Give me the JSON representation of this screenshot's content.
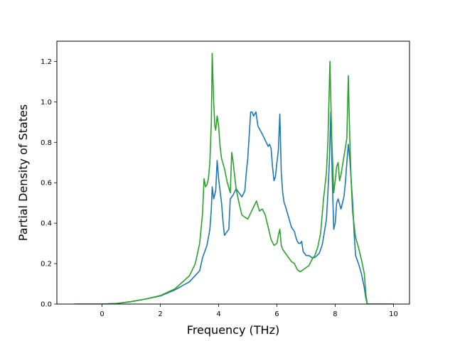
{
  "chart_data": {
    "type": "line",
    "title": "",
    "xlabel": "Frequency (THz)",
    "ylabel": "Partial Density of States",
    "xlim": [
      -1.55,
      10.55
    ],
    "ylim": [
      0.0,
      1.3
    ],
    "xticks": [
      0,
      2,
      4,
      6,
      8,
      10
    ],
    "yticks": [
      0.0,
      0.2,
      0.4,
      0.6,
      0.8,
      1.0,
      1.2
    ],
    "xtick_labels": [
      "0",
      "2",
      "4",
      "6",
      "8",
      "10"
    ],
    "ytick_labels": [
      "0.0",
      "0.2",
      "0.4",
      "0.6",
      "0.8",
      "1.0",
      "1.2"
    ],
    "grid": false,
    "series": [
      {
        "color": "#1f77b4",
        "points": [
          [
            -0.95,
            0.0
          ],
          [
            0.0,
            0.0
          ],
          [
            0.5,
            0.003
          ],
          [
            1.0,
            0.012
          ],
          [
            1.5,
            0.025
          ],
          [
            2.0,
            0.04
          ],
          [
            2.5,
            0.07
          ],
          [
            3.0,
            0.11
          ],
          [
            3.35,
            0.165
          ],
          [
            3.45,
            0.23
          ],
          [
            3.6,
            0.29
          ],
          [
            3.7,
            0.37
          ],
          [
            3.75,
            0.47
          ],
          [
            3.78,
            0.58
          ],
          [
            3.83,
            0.52
          ],
          [
            3.9,
            0.56
          ],
          [
            3.95,
            0.71
          ],
          [
            4.0,
            0.62
          ],
          [
            4.1,
            0.5
          ],
          [
            4.15,
            0.41
          ],
          [
            4.2,
            0.34
          ],
          [
            4.3,
            0.36
          ],
          [
            4.35,
            0.37
          ],
          [
            4.4,
            0.52
          ],
          [
            4.5,
            0.54
          ],
          [
            4.6,
            0.57
          ],
          [
            4.7,
            0.55
          ],
          [
            4.8,
            0.53
          ],
          [
            4.9,
            0.56
          ],
          [
            4.95,
            0.65
          ],
          [
            5.0,
            0.72
          ],
          [
            5.1,
            0.95
          ],
          [
            5.15,
            0.95
          ],
          [
            5.2,
            0.93
          ],
          [
            5.28,
            0.95
          ],
          [
            5.35,
            0.88
          ],
          [
            5.5,
            0.84
          ],
          [
            5.6,
            0.81
          ],
          [
            5.7,
            0.78
          ],
          [
            5.75,
            0.79
          ],
          [
            5.8,
            0.77
          ],
          [
            5.85,
            0.68
          ],
          [
            5.9,
            0.61
          ],
          [
            5.95,
            0.63
          ],
          [
            6.0,
            0.7
          ],
          [
            6.05,
            0.76
          ],
          [
            6.1,
            0.94
          ],
          [
            6.15,
            0.65
          ],
          [
            6.2,
            0.55
          ],
          [
            6.25,
            0.5
          ],
          [
            6.3,
            0.48
          ],
          [
            6.4,
            0.43
          ],
          [
            6.5,
            0.38
          ],
          [
            6.6,
            0.36
          ],
          [
            6.65,
            0.33
          ],
          [
            6.7,
            0.31
          ],
          [
            6.75,
            0.3
          ],
          [
            6.8,
            0.3
          ],
          [
            6.85,
            0.31
          ],
          [
            6.9,
            0.26
          ],
          [
            7.0,
            0.24
          ],
          [
            7.1,
            0.24
          ],
          [
            7.2,
            0.23
          ],
          [
            7.3,
            0.23
          ],
          [
            7.45,
            0.25
          ],
          [
            7.55,
            0.29
          ],
          [
            7.6,
            0.33
          ],
          [
            7.7,
            0.42
          ],
          [
            7.75,
            0.55
          ],
          [
            7.8,
            0.7
          ],
          [
            7.85,
            0.95
          ],
          [
            7.9,
            0.62
          ],
          [
            7.95,
            0.37
          ],
          [
            8.0,
            0.4
          ],
          [
            8.05,
            0.5
          ],
          [
            8.1,
            0.52
          ],
          [
            8.2,
            0.47
          ],
          [
            8.3,
            0.53
          ],
          [
            8.35,
            0.6
          ],
          [
            8.4,
            0.7
          ],
          [
            8.45,
            0.79
          ],
          [
            8.5,
            0.72
          ],
          [
            8.6,
            0.5
          ],
          [
            8.65,
            0.35
          ],
          [
            8.7,
            0.24
          ],
          [
            8.8,
            0.2
          ],
          [
            8.9,
            0.15
          ],
          [
            9.0,
            0.08
          ],
          [
            9.05,
            0.03
          ],
          [
            9.1,
            0.0
          ],
          [
            10.0,
            0.0
          ]
        ]
      },
      {
        "color": "#2ca02c",
        "points": [
          [
            -0.95,
            0.0
          ],
          [
            0.0,
            0.0
          ],
          [
            0.5,
            0.003
          ],
          [
            1.0,
            0.012
          ],
          [
            1.5,
            0.025
          ],
          [
            2.0,
            0.042
          ],
          [
            2.5,
            0.075
          ],
          [
            3.0,
            0.14
          ],
          [
            3.2,
            0.2
          ],
          [
            3.35,
            0.3
          ],
          [
            3.45,
            0.45
          ],
          [
            3.5,
            0.62
          ],
          [
            3.55,
            0.58
          ],
          [
            3.6,
            0.59
          ],
          [
            3.65,
            0.62
          ],
          [
            3.7,
            0.7
          ],
          [
            3.75,
            0.9
          ],
          [
            3.78,
            1.24
          ],
          [
            3.83,
            1.0
          ],
          [
            3.87,
            0.88
          ],
          [
            3.9,
            0.86
          ],
          [
            3.95,
            0.93
          ],
          [
            4.0,
            0.88
          ],
          [
            4.05,
            0.78
          ],
          [
            4.1,
            0.72
          ],
          [
            4.2,
            0.67
          ],
          [
            4.3,
            0.6
          ],
          [
            4.4,
            0.55
          ],
          [
            4.45,
            0.75
          ],
          [
            4.5,
            0.7
          ],
          [
            4.6,
            0.57
          ],
          [
            4.7,
            0.5
          ],
          [
            4.8,
            0.44
          ],
          [
            4.9,
            0.43
          ],
          [
            5.0,
            0.42
          ],
          [
            5.1,
            0.45
          ],
          [
            5.2,
            0.48
          ],
          [
            5.3,
            0.51
          ],
          [
            5.4,
            0.46
          ],
          [
            5.5,
            0.47
          ],
          [
            5.6,
            0.44
          ],
          [
            5.7,
            0.38
          ],
          [
            5.8,
            0.32
          ],
          [
            5.9,
            0.29
          ],
          [
            6.0,
            0.3
          ],
          [
            6.05,
            0.34
          ],
          [
            6.1,
            0.37
          ],
          [
            6.15,
            0.29
          ],
          [
            6.2,
            0.27
          ],
          [
            6.3,
            0.25
          ],
          [
            6.4,
            0.23
          ],
          [
            6.5,
            0.21
          ],
          [
            6.6,
            0.2
          ],
          [
            6.7,
            0.17
          ],
          [
            6.8,
            0.16
          ],
          [
            6.9,
            0.17
          ],
          [
            7.0,
            0.18
          ],
          [
            7.1,
            0.19
          ],
          [
            7.2,
            0.22
          ],
          [
            7.3,
            0.24
          ],
          [
            7.4,
            0.28
          ],
          [
            7.5,
            0.35
          ],
          [
            7.6,
            0.52
          ],
          [
            7.7,
            0.65
          ],
          [
            7.75,
            0.8
          ],
          [
            7.82,
            1.2
          ],
          [
            7.88,
            0.83
          ],
          [
            7.95,
            0.55
          ],
          [
            8.0,
            0.61
          ],
          [
            8.05,
            0.68
          ],
          [
            8.1,
            0.7
          ],
          [
            8.15,
            0.61
          ],
          [
            8.2,
            0.64
          ],
          [
            8.3,
            0.73
          ],
          [
            8.4,
            0.82
          ],
          [
            8.45,
            1.13
          ],
          [
            8.5,
            0.82
          ],
          [
            8.55,
            0.6
          ],
          [
            8.6,
            0.45
          ],
          [
            8.7,
            0.33
          ],
          [
            8.8,
            0.28
          ],
          [
            8.9,
            0.22
          ],
          [
            9.0,
            0.15
          ],
          [
            9.05,
            0.05
          ],
          [
            9.1,
            0.0
          ],
          [
            10.0,
            0.0
          ]
        ]
      }
    ]
  }
}
